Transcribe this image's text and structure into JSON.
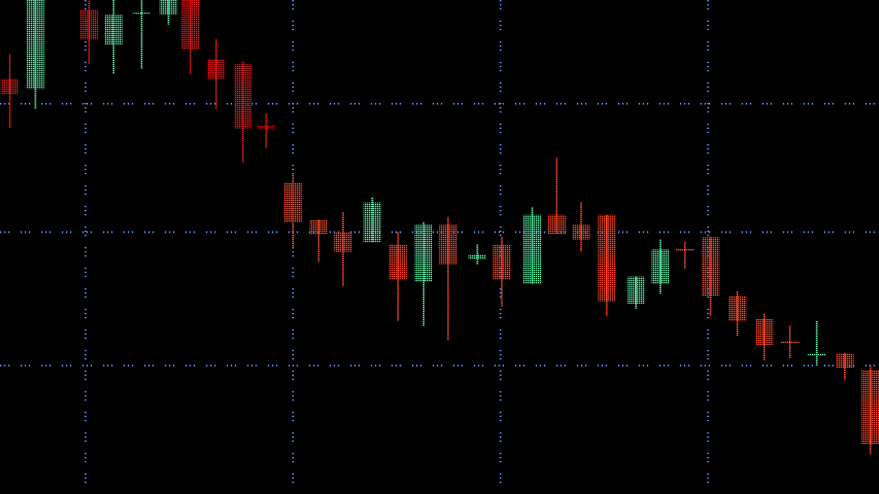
{
  "chart_data": {
    "type": "candlestick",
    "title": "",
    "xlabel": "",
    "ylabel": "",
    "xlim": [
      0,
      36
    ],
    "ylim": [
      0,
      100
    ],
    "grid": true,
    "legend": "none",
    "colors": {
      "background": "#000000",
      "up": "#5ef0a8",
      "down_dark": "#ee1c1c",
      "down": "#ff4a2a",
      "grid": "#5a8cff"
    },
    "grid_x": [
      3.5,
      12,
      20.5,
      29
    ],
    "grid_y": [
      26,
      53,
      79
    ],
    "candles": [
      {
        "x": 0.4,
        "open": 84,
        "high": 89,
        "low": 74,
        "close": 81,
        "tone": "down_dark"
      },
      {
        "x": 1.45,
        "open": 82,
        "high": 112,
        "low": 78,
        "close": 108,
        "tone": "up"
      },
      {
        "x": 3.65,
        "open": 98,
        "high": 104,
        "low": 87,
        "close": 92,
        "tone": "down_dark"
      },
      {
        "x": 4.65,
        "open": 91,
        "high": 100,
        "low": 85,
        "close": 97,
        "tone": "up"
      },
      {
        "x": 5.8,
        "open": 97,
        "high": 101,
        "low": 86,
        "close": 97.3,
        "tone": "up"
      },
      {
        "x": 6.9,
        "open": 97,
        "high": 106,
        "low": 95,
        "close": 103,
        "tone": "up"
      },
      {
        "x": 7.8,
        "open": 102,
        "high": 108,
        "low": 85,
        "close": 90,
        "tone": "down_dark"
      },
      {
        "x": 8.85,
        "open": 88,
        "high": 92,
        "low": 78,
        "close": 84,
        "tone": "down_dark"
      },
      {
        "x": 9.95,
        "open": 87,
        "high": 87.5,
        "low": 67,
        "close": 74,
        "tone": "down_dark"
      },
      {
        "x": 10.9,
        "open": 74.5,
        "high": 77,
        "low": 70,
        "close": 74,
        "tone": "down_dark"
      },
      {
        "x": 12.0,
        "open": 63,
        "high": 65,
        "low": 50,
        "close": 55,
        "tone": "down"
      },
      {
        "x": 13.05,
        "open": 55.5,
        "high": 55.5,
        "low": 47,
        "close": 52.5,
        "tone": "down"
      },
      {
        "x": 14.05,
        "open": 53,
        "high": 57,
        "low": 42,
        "close": 49,
        "tone": "down"
      },
      {
        "x": 15.25,
        "open": 51,
        "high": 60,
        "low": 51,
        "close": 59,
        "tone": "up"
      },
      {
        "x": 16.3,
        "open": 50.5,
        "high": 53,
        "low": 35,
        "close": 43.5,
        "tone": "down"
      },
      {
        "x": 17.35,
        "open": 43,
        "high": 55,
        "low": 34,
        "close": 54.5,
        "tone": "up"
      },
      {
        "x": 18.35,
        "open": 54.5,
        "high": 56,
        "low": 31,
        "close": 46.5,
        "tone": "down"
      },
      {
        "x": 19.55,
        "open": 47.5,
        "high": 50.5,
        "low": 46.5,
        "close": 48.5,
        "tone": "up"
      },
      {
        "x": 20.55,
        "open": 50.5,
        "high": 52,
        "low": 38,
        "close": 43.5,
        "tone": "down"
      },
      {
        "x": 21.8,
        "open": 42.5,
        "high": 58,
        "low": 42.5,
        "close": 56.5,
        "tone": "up"
      },
      {
        "x": 22.8,
        "open": 56.5,
        "high": 68,
        "low": 53,
        "close": 52.5,
        "tone": "down"
      },
      {
        "x": 23.8,
        "open": 54.5,
        "high": 59,
        "low": 49,
        "close": 51.5,
        "tone": "down"
      },
      {
        "x": 24.85,
        "open": 56.5,
        "high": 56.5,
        "low": 36,
        "close": 39,
        "tone": "down"
      },
      {
        "x": 26.05,
        "open": 38.5,
        "high": 44,
        "low": 37.5,
        "close": 44,
        "tone": "up"
      },
      {
        "x": 27.05,
        "open": 42.5,
        "high": 51.5,
        "low": 40.5,
        "close": 49.5,
        "tone": "up"
      },
      {
        "x": 28.05,
        "open": 49.5,
        "high": 51,
        "low": 45.5,
        "close": 49.5,
        "tone": "down"
      },
      {
        "x": 29.1,
        "open": 52,
        "high": 52,
        "low": 36,
        "close": 40,
        "tone": "down"
      },
      {
        "x": 30.2,
        "open": 40,
        "high": 41,
        "low": 32,
        "close": 35,
        "tone": "down"
      },
      {
        "x": 31.3,
        "open": 35.5,
        "high": 36.5,
        "low": 27,
        "close": 30,
        "tone": "down"
      },
      {
        "x": 32.35,
        "open": 31,
        "high": 34,
        "low": 27.5,
        "close": 30.5,
        "tone": "down"
      },
      {
        "x": 33.45,
        "open": 28,
        "high": 35,
        "low": 26,
        "close": 28.5,
        "tone": "up"
      },
      {
        "x": 34.6,
        "open": 28.5,
        "high": 28.5,
        "low": 23,
        "close": 25.5,
        "tone": "down"
      },
      {
        "x": 35.65,
        "open": 25,
        "high": 26,
        "low": 8,
        "close": 10,
        "tone": "down"
      }
    ]
  }
}
